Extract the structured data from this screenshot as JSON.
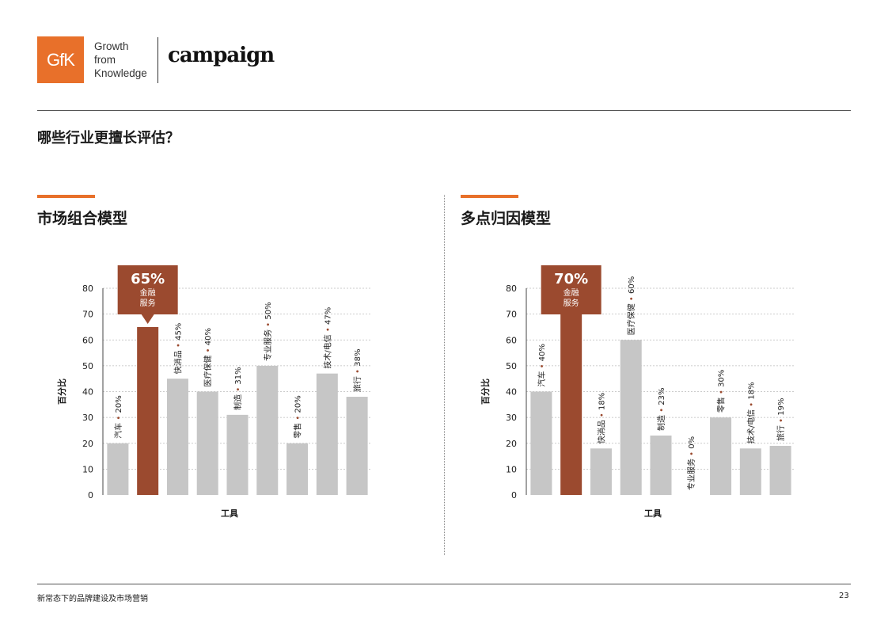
{
  "header": {
    "logo_text": "GfK",
    "tagline": [
      "Growth",
      "from",
      "Knowledge"
    ],
    "partner": "campaign"
  },
  "question": "哪些行业更擅长评估？",
  "colors": {
    "accent": "#e8702a",
    "highlight": "#9b4a2f",
    "bar": "#c6c6c6",
    "grid": "#bbbbbb"
  },
  "panels": [
    {
      "title": "市场组合模型"
    },
    {
      "title": "多点归因模型"
    }
  ],
  "chart_data": [
    {
      "type": "bar",
      "title": "市场组合模型",
      "xlabel": "工具",
      "ylabel": "百分比",
      "ylim": [
        0,
        80
      ],
      "yticks": [
        0,
        10,
        20,
        30,
        40,
        50,
        60,
        70,
        80
      ],
      "grid": true,
      "categories": [
        "汽车",
        "金融服务",
        "快消品",
        "医疗保健",
        "制造",
        "专业服务",
        "零售",
        "技术/电信",
        "旅行"
      ],
      "values": [
        20,
        65,
        45,
        40,
        31,
        50,
        20,
        47,
        38
      ],
      "bar_labels": [
        "汽车 • 20%",
        "",
        "快消品 • 45%",
        "医疗保健 • 40%",
        "制造 • 31%",
        "专业服务 • 50%",
        "零售 • 20%",
        "技术/电信 • 47%",
        "旅行 • 38%"
      ],
      "highlight_index": 1,
      "callout": {
        "value": "65%",
        "line1": "金融",
        "line2": "服务"
      }
    },
    {
      "type": "bar",
      "title": "多点归因模型",
      "xlabel": "工具",
      "ylabel": "百分比",
      "ylim": [
        0,
        80
      ],
      "yticks": [
        0,
        10,
        20,
        30,
        40,
        50,
        60,
        70,
        80
      ],
      "grid": true,
      "categories": [
        "汽车",
        "金融服务",
        "快消品",
        "医疗保健",
        "制造",
        "专业服务",
        "零售",
        "技术/电信",
        "旅行"
      ],
      "values": [
        40,
        70,
        18,
        60,
        23,
        0,
        30,
        18,
        19
      ],
      "bar_labels": [
        "汽车 • 40%",
        "",
        "快消品 • 18%",
        "医疗保健 • 60%",
        "制造 • 23%",
        "专业服务 • 0%",
        "零售 • 30%",
        "技术/电信 • 18%",
        "旅行 • 19%"
      ],
      "highlight_index": 1,
      "callout": {
        "value": "70%",
        "line1": "金融",
        "line2": "服务"
      }
    }
  ],
  "footer": {
    "text": "新常态下的品牌建设及市场营销",
    "page": "23"
  }
}
